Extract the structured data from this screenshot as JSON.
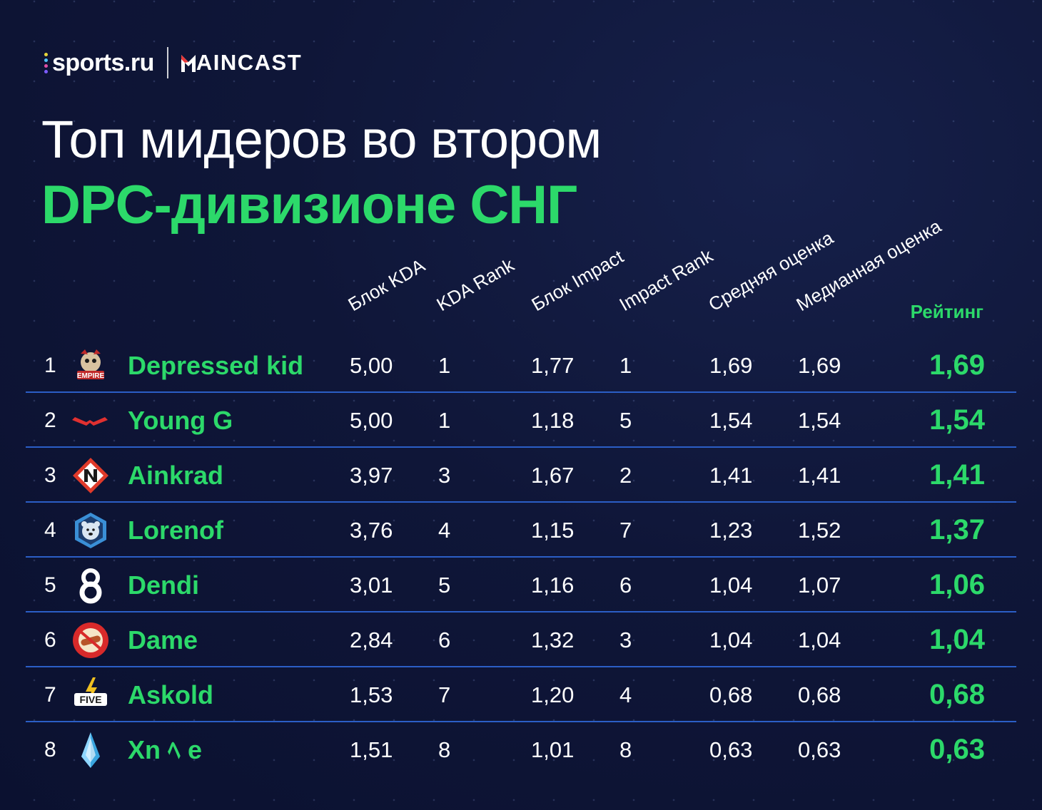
{
  "brand": {
    "sports_text": "sports.ru",
    "sports_dot_colors": [
      "#e6d53a",
      "#4fc3f7",
      "#e04fa4",
      "#7c5cff"
    ],
    "maincast_text": "AINCAST",
    "maincast_accent": "#e83a3a"
  },
  "title": {
    "line1": "Топ мидеров во втором",
    "line2": "DPC-дивизионе СНГ"
  },
  "colors": {
    "accent_green": "#2cd96a",
    "divider_blue": "#2b5ec6",
    "background": "#0f1638"
  },
  "columns": [
    "Блок KDA",
    "KDA Rank",
    "Блок Impact",
    "Impact Rank",
    "Средняя оценка",
    "Медианная оценка",
    "Рейтинг"
  ],
  "rows": [
    {
      "rank": "1",
      "logo": "empire-logo",
      "name": "Depressed kid",
      "kda_block": "5,00",
      "kda_rank": "1",
      "impact_block": "1,77",
      "impact_rank": "1",
      "avg": "1,69",
      "median": "1,69",
      "rating": "1,69"
    },
    {
      "rank": "2",
      "logo": "virtus-pro-logo",
      "name": "Young G",
      "kda_block": "5,00",
      "kda_rank": "1",
      "impact_block": "1,18",
      "impact_rank": "5",
      "avg": "1,54",
      "median": "1,54",
      "rating": "1,54"
    },
    {
      "rank": "3",
      "logo": "nigma-logo",
      "name": "Ainkrad",
      "kda_block": "3,97",
      "kda_rank": "3",
      "impact_block": "1,67",
      "impact_rank": "2",
      "avg": "1,41",
      "median": "1,41",
      "rating": "1,41"
    },
    {
      "rank": "4",
      "logo": "winstrike-bear-logo",
      "name": "Lorenof",
      "kda_block": "3,76",
      "kda_rank": "4",
      "impact_block": "1,15",
      "impact_rank": "7",
      "avg": "1,23",
      "median": "1,52",
      "rating": "1,37"
    },
    {
      "rank": "5",
      "logo": "b8-logo",
      "name": "Dendi",
      "kda_block": "3,01",
      "kda_rank": "5",
      "impact_block": "1,16",
      "impact_rank": "6",
      "avg": "1,04",
      "median": "1,07",
      "rating": "1,06"
    },
    {
      "rank": "6",
      "logo": "hotdog-logo",
      "name": "Dame",
      "kda_block": "2,84",
      "kda_rank": "6",
      "impact_block": "1,32",
      "impact_rank": "3",
      "avg": "1,04",
      "median": "1,04",
      "rating": "1,04"
    },
    {
      "rank": "7",
      "logo": "fantastic-five-logo",
      "name": "Askold",
      "kda_block": "1,53",
      "kda_rank": "7",
      "impact_block": "1,20",
      "impact_rank": "4",
      "avg": "0,68",
      "median": "0,68",
      "rating": "0,68"
    },
    {
      "rank": "8",
      "logo": "crystal-logo",
      "name": "Xn ﾍ e",
      "kda_block": "1,51",
      "kda_rank": "8",
      "impact_block": "1,01",
      "impact_rank": "8",
      "avg": "0,63",
      "median": "0,63",
      "rating": "0,63"
    }
  ]
}
